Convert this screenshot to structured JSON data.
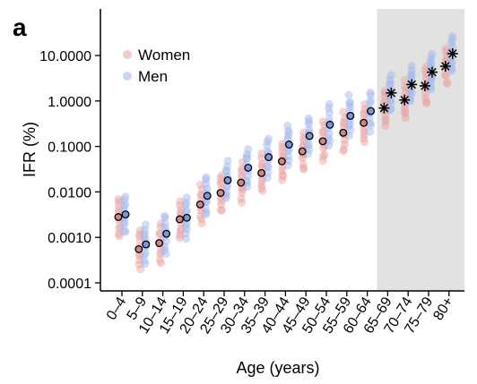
{
  "chart_data": {
    "type": "scatter",
    "panel_label": "a",
    "xlabel": "Age (years)",
    "ylabel": "IFR (%)",
    "y_scale": "log",
    "ylim": [
      0.0001,
      30
    ],
    "y_ticks": [
      0.0001,
      0.001,
      0.01,
      0.1,
      1,
      10
    ],
    "y_tick_labels": [
      "0.0001",
      "0.0010",
      "0.0100",
      "0.1000",
      "1.0000",
      "10.0000"
    ],
    "categories": [
      "0–4",
      "5–9",
      "10–14",
      "15–19",
      "20–24",
      "25–29",
      "30–34",
      "35–39",
      "40–44",
      "45–49",
      "50–54",
      "55–59",
      "60–64",
      "65–69",
      "70–74",
      "75–79",
      "80+"
    ],
    "shaded_from_category": "65–69",
    "legend": {
      "position": "top-left",
      "entries": [
        "Women",
        "Men"
      ]
    },
    "colors": {
      "women": "#e8a0a0",
      "men": "#9db3ea",
      "shade": "#e2e2e2",
      "estimate_marker_women": "#cf8585",
      "estimate_marker_men": "#7d95d9"
    },
    "series": [
      {
        "name": "Women",
        "estimates": [
          0.0028,
          0.00055,
          0.00075,
          0.0025,
          0.0053,
          0.0095,
          0.016,
          0.026,
          0.047,
          0.078,
          0.13,
          0.2,
          0.33
        ]
      },
      {
        "name": "Men",
        "estimates": [
          0.0032,
          0.0007,
          0.0012,
          0.0027,
          0.0082,
          0.018,
          0.034,
          0.058,
          0.11,
          0.17,
          0.3,
          0.47,
          0.6
        ]
      }
    ],
    "estimates_65plus": [
      0.7,
      1.5,
      1.05,
      2.3,
      2.15,
      4.3,
      5.8,
      11
    ]
  }
}
